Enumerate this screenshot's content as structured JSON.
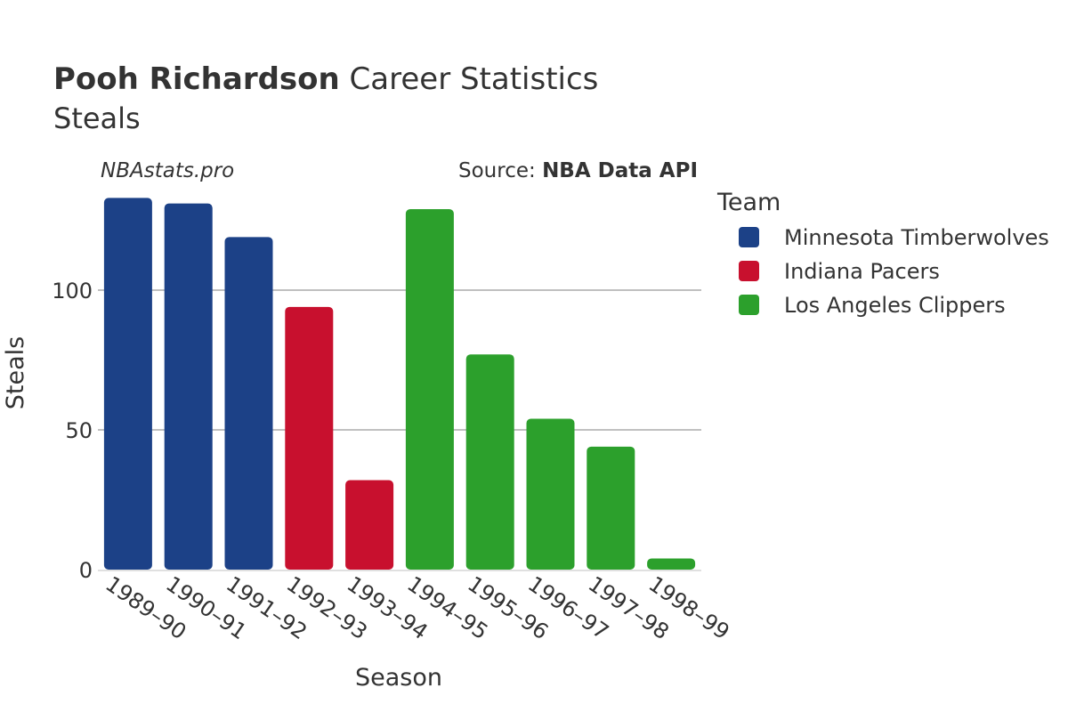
{
  "chart_data": {
    "type": "bar",
    "title_bold": "Pooh Richardson",
    "title_rest": "Career Statistics",
    "subtitle": "Steals",
    "watermark": "NBAstats.pro",
    "source_prefix": "Source: ",
    "source_name": "NBA Data API",
    "xlabel": "Season",
    "ylabel": "Steals",
    "ylim": [
      0,
      140
    ],
    "yticks": [
      0,
      50,
      100
    ],
    "grid": true,
    "legend_title": "Team",
    "legend_position": "right",
    "teams": [
      {
        "name": "Minnesota Timberwolves",
        "color": "#1c4187"
      },
      {
        "name": "Indiana Pacers",
        "color": "#c8102e"
      },
      {
        "name": "Los Angeles Clippers",
        "color": "#2ca02c"
      }
    ],
    "categories": [
      "1989–90",
      "1990–91",
      "1991–92",
      "1992–93",
      "1993–94",
      "1994–95",
      "1995–96",
      "1996–97",
      "1997–98",
      "1998–99"
    ],
    "values": [
      133,
      131,
      119,
      94,
      32,
      129,
      77,
      54,
      44,
      4
    ],
    "team_index": [
      0,
      0,
      0,
      1,
      1,
      2,
      2,
      2,
      2,
      2
    ]
  }
}
